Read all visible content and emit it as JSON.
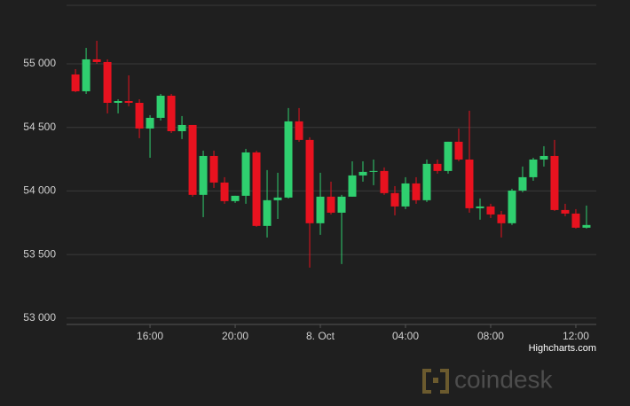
{
  "chart_data": {
    "type": "candlestick",
    "x": [
      -11.5,
      -11,
      -10.5,
      -10,
      -9.5,
      -9,
      -8.5,
      -8,
      -7.5,
      -7,
      -6.5,
      -6,
      -5.5,
      -5,
      -4.5,
      -4,
      -3.5,
      -3,
      -2.5,
      -2,
      -1.5,
      -1,
      -0.5,
      0,
      0.5,
      1,
      1.5,
      2,
      2.5,
      3,
      3.5,
      4,
      4.5,
      5,
      5.5,
      6,
      6.5,
      7,
      7.5,
      8,
      8.5,
      9,
      9.5,
      10,
      10.5,
      11,
      11.5,
      12,
      12.5
    ],
    "open": [
      54916,
      54784,
      55035,
      55014,
      54693,
      54707,
      54693,
      54491,
      54575,
      54749,
      54470,
      54519,
      53969,
      54275,
      54066,
      53920,
      53962,
      54303,
      53725,
      53927,
      53948,
      54547,
      54401,
      53746,
      53955,
      53829,
      53955,
      54122,
      54150,
      54157,
      53983,
      53878,
      54059,
      53927,
      54213,
      54157,
      54387,
      54247,
      53864,
      53878,
      53815,
      53746,
      54003,
      54108,
      54247,
      54275,
      53850,
      53822,
      53711
    ],
    "high": [
      54958,
      55125,
      55181,
      55035,
      54721,
      54909,
      54721,
      54596,
      54763,
      54763,
      54589,
      54519,
      54317,
      54317,
      54108,
      53962,
      54331,
      54317,
      54164,
      54143,
      54652,
      54652,
      54422,
      54143,
      54073,
      53969,
      54233,
      54233,
      54247,
      54185,
      54038,
      54108,
      54108,
      54247,
      54247,
      54387,
      54491,
      54631,
      53941,
      53899,
      53843,
      54017,
      54192,
      54261,
      54352,
      54401,
      53899,
      53857,
      53885
    ],
    "low": [
      54777,
      54763,
      55000,
      54610,
      54610,
      54666,
      54415,
      54261,
      54554,
      54456,
      54408,
      53955,
      53794,
      54024,
      53899,
      53906,
      53899,
      53718,
      53634,
      53780,
      53941,
      54387,
      53397,
      53655,
      53815,
      53425,
      53955,
      54073,
      54045,
      53969,
      53808,
      53857,
      53899,
      53913,
      54136,
      54136,
      54233,
      53829,
      53774,
      53787,
      53634,
      53732,
      53990,
      54080,
      54192,
      53843,
      53801,
      53704,
      53704
    ],
    "close": [
      54784,
      55035,
      55014,
      54693,
      54707,
      54693,
      54491,
      54575,
      54749,
      54470,
      54519,
      53969,
      54275,
      54066,
      53920,
      53962,
      54303,
      53725,
      53927,
      53948,
      54547,
      54401,
      53746,
      53955,
      53829,
      53955,
      54122,
      54150,
      54157,
      53983,
      53878,
      54059,
      53927,
      54213,
      54157,
      54387,
      54247,
      53864,
      53878,
      53815,
      53746,
      54003,
      54108,
      54247,
      54275,
      53850,
      53822,
      53711,
      53732
    ],
    "up_color": "#2fcf6f",
    "down_color": "#e8121f",
    "xlim": [
      -11.92,
      12.96
    ],
    "xticks": [
      {
        "value": -8,
        "label": "16:00"
      },
      {
        "value": -4,
        "label": "20:00"
      },
      {
        "value": 0,
        "label": "8. Oct"
      },
      {
        "value": 4,
        "label": "04:00"
      },
      {
        "value": 8,
        "label": "08:00"
      },
      {
        "value": 12,
        "label": "12:00"
      }
    ],
    "ylim": [
      52950,
      55460
    ],
    "yticks": [
      {
        "value": 53000,
        "label": "53 000"
      },
      {
        "value": 53500,
        "label": "53 500"
      },
      {
        "value": 54000,
        "label": "54 000"
      },
      {
        "value": 54500,
        "label": "54 500"
      },
      {
        "value": 55000,
        "label": "55 000"
      }
    ],
    "grid": true,
    "credits": "Highcharts.com",
    "watermark": "coindesk"
  }
}
